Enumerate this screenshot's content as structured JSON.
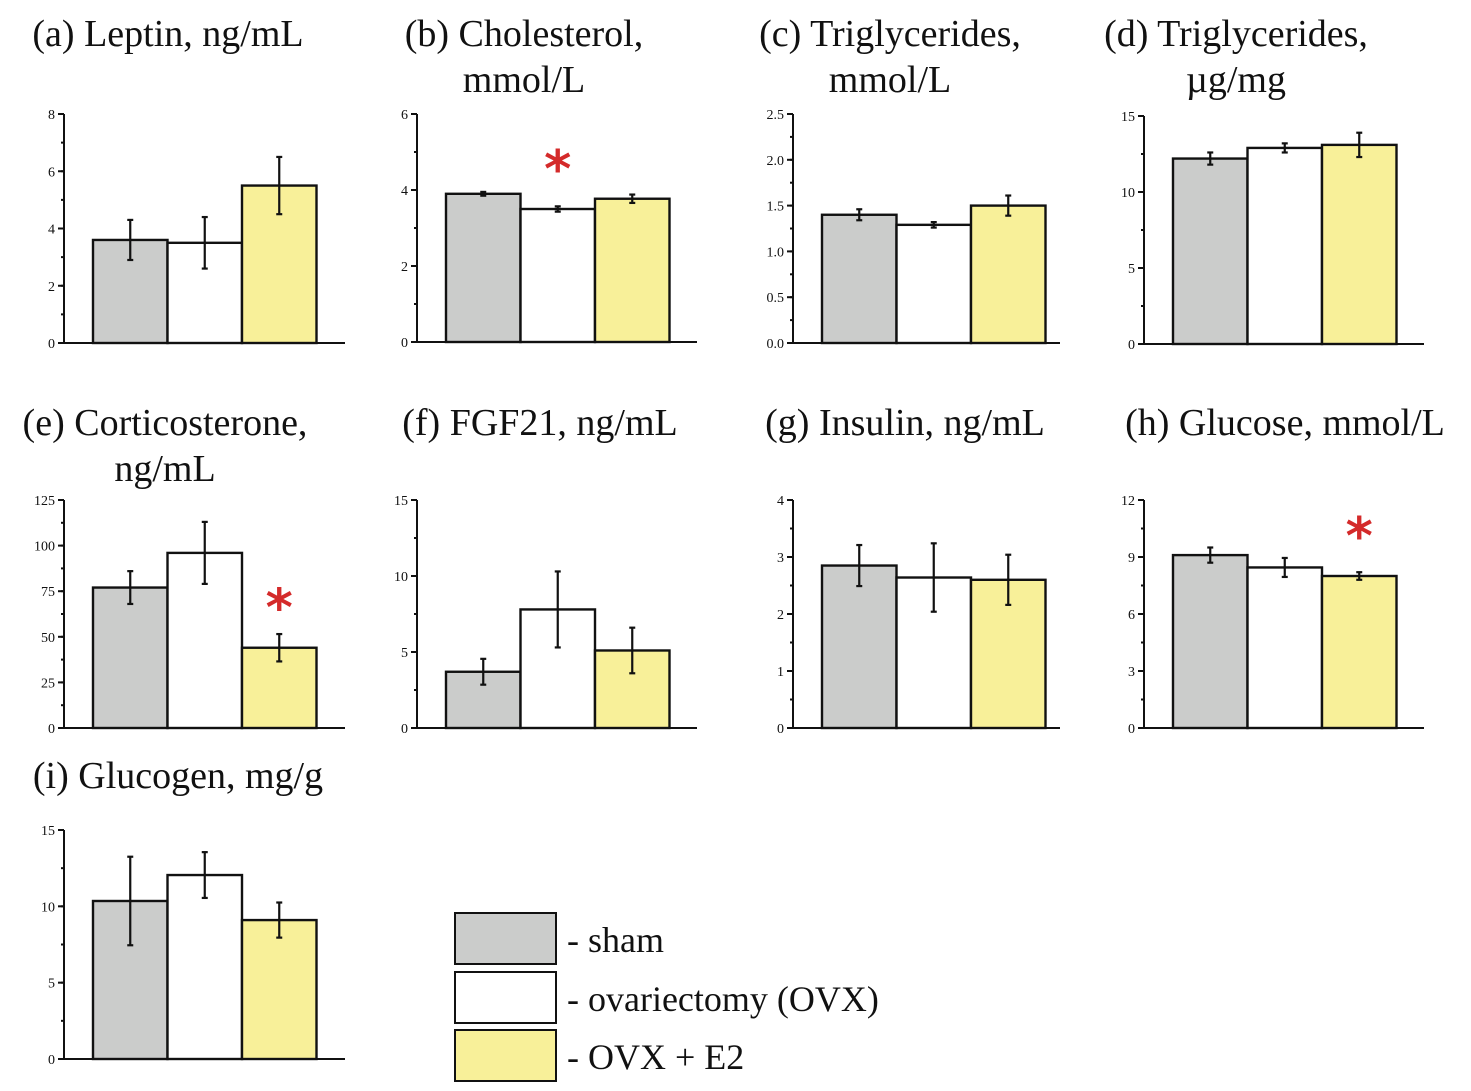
{
  "chart_data": {
    "type": "bar",
    "legend": {
      "placement": "bottom-center",
      "entries": [
        {
          "key": "sham",
          "label": "- sham",
          "color": "#cbcccb"
        },
        {
          "key": "ovx",
          "label": "- ovariectomy (OVX)",
          "color": "#ffffff"
        },
        {
          "key": "ovx_e2",
          "label": "- OVX + E2",
          "color": "#f8f099"
        }
      ]
    },
    "categories": [
      "sham",
      "ovariectomy (OVX)",
      "OVX + E2"
    ],
    "panels": [
      {
        "id": "a",
        "title_lines": [
          "(a) Leptin, ng/mL"
        ],
        "ylim": [
          0,
          8
        ],
        "yticks": [
          0,
          2,
          4,
          6,
          8
        ],
        "minor_step": 1,
        "ytick_labels": [
          "0",
          "2",
          "4",
          "6",
          "8"
        ],
        "values": [
          3.6,
          3.5,
          5.5
        ],
        "errors": [
          0.7,
          0.9,
          1.0
        ],
        "significant": [
          false,
          false,
          false
        ]
      },
      {
        "id": "b",
        "title_lines": [
          "(b) Cholesterol,",
          "mmol/L"
        ],
        "ylim": [
          0,
          6
        ],
        "yticks": [
          0,
          2,
          4,
          6
        ],
        "minor_step": 1,
        "ytick_labels": [
          "0",
          "2",
          "4",
          "6"
        ],
        "values": [
          3.9,
          3.5,
          3.77
        ],
        "errors": [
          0.05,
          0.07,
          0.11
        ],
        "significant": [
          false,
          true,
          false
        ]
      },
      {
        "id": "c",
        "title_lines": [
          "(c) Triglycerides,",
          "mmol/L"
        ],
        "ylim": [
          0,
          2.5
        ],
        "yticks": [
          0,
          0.5,
          1.0,
          1.5,
          2.0,
          2.5
        ],
        "minor_step": 0.25,
        "ytick_labels": [
          "0.0",
          "0.5",
          "1.0",
          "1.5",
          "2.0",
          "2.5"
        ],
        "values": [
          1.4,
          1.29,
          1.5
        ],
        "errors": [
          0.06,
          0.03,
          0.11
        ],
        "significant": [
          false,
          false,
          false
        ]
      },
      {
        "id": "d",
        "title_lines": [
          "(d) Triglycerides,",
          "µg/mg"
        ],
        "ylim": [
          0,
          15
        ],
        "yticks": [
          0,
          5,
          10,
          15
        ],
        "minor_step": 2.5,
        "ytick_labels": [
          "0",
          "5",
          "10",
          "15"
        ],
        "values": [
          12.2,
          12.9,
          13.1
        ],
        "errors": [
          0.4,
          0.3,
          0.8
        ],
        "significant": [
          false,
          false,
          false
        ]
      },
      {
        "id": "e",
        "title_lines": [
          "(e) Corticosterone,",
          "ng/mL"
        ],
        "ylim": [
          0,
          125
        ],
        "yticks": [
          0,
          25,
          50,
          75,
          100,
          125
        ],
        "minor_step": 12.5,
        "ytick_labels": [
          "0",
          "25",
          "50",
          "75",
          "100",
          "125"
        ],
        "values": [
          77,
          96,
          44
        ],
        "errors": [
          9,
          17,
          7.5
        ],
        "significant": [
          false,
          false,
          true
        ]
      },
      {
        "id": "f",
        "title_lines": [
          "(f) FGF21, ng/mL"
        ],
        "ylim": [
          0,
          15
        ],
        "yticks": [
          0,
          5,
          10,
          15
        ],
        "minor_step": 2.5,
        "ytick_labels": [
          "0",
          "5",
          "10",
          "15"
        ],
        "values": [
          3.7,
          7.8,
          5.1
        ],
        "errors": [
          0.85,
          2.5,
          1.5
        ],
        "significant": [
          false,
          false,
          false
        ]
      },
      {
        "id": "g",
        "title_lines": [
          "(g) Insulin, ng/mL"
        ],
        "ylim": [
          0,
          4
        ],
        "yticks": [
          0,
          1,
          2,
          3,
          4
        ],
        "minor_step": 0.5,
        "ytick_labels": [
          "0",
          "1",
          "2",
          "3",
          "4"
        ],
        "values": [
          2.85,
          2.64,
          2.6
        ],
        "errors": [
          0.36,
          0.6,
          0.44
        ],
        "significant": [
          false,
          false,
          false
        ]
      },
      {
        "id": "h",
        "title_lines": [
          "(h) Glucose, mmol/L"
        ],
        "ylim": [
          0,
          12
        ],
        "yticks": [
          0,
          3,
          6,
          9,
          12
        ],
        "minor_step": 1.5,
        "ytick_labels": [
          "0",
          "3",
          "6",
          "9",
          "12"
        ],
        "values": [
          9.1,
          8.45,
          8.0
        ],
        "errors": [
          0.4,
          0.5,
          0.2
        ],
        "significant": [
          false,
          false,
          true
        ]
      },
      {
        "id": "i",
        "title_lines": [
          "(i) Glucogen, mg/g"
        ],
        "ylim": [
          0,
          15
        ],
        "yticks": [
          0,
          5,
          10,
          15
        ],
        "minor_step": 2.5,
        "ytick_labels": [
          "0",
          "5",
          "10",
          "15"
        ],
        "values": [
          10.35,
          12.05,
          9.1
        ],
        "errors": [
          2.9,
          1.5,
          1.15
        ],
        "significant": [
          false,
          false,
          false
        ]
      }
    ],
    "significance_marker": "*",
    "significance_color": "#d42a2a",
    "xlabel": "",
    "grid": false
  }
}
